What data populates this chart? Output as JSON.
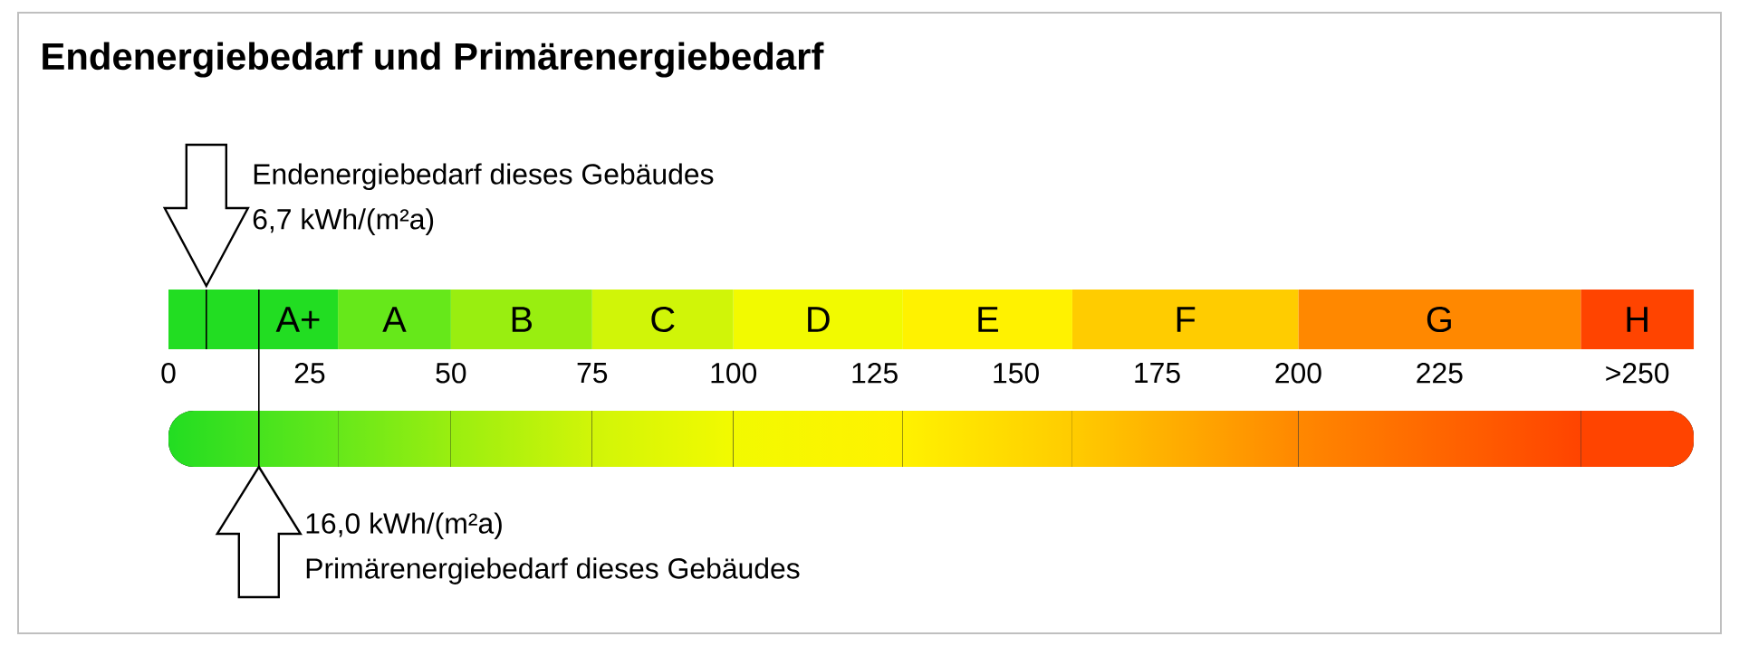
{
  "chart_data": {
    "type": "bar",
    "orientation": "horizontal",
    "stacked": true,
    "title": "Endenergiebedarf und Primärenergiebedarf",
    "categories": [
      null
    ],
    "xlim": [
      0,
      270
    ],
    "xticks": [
      0,
      25,
      50,
      75,
      100,
      125,
      150,
      175,
      200,
      225,
      {
        "value": 260,
        "label": ">250"
      }
    ],
    "series": [
      {
        "name": "A+",
        "color": "#22dd22",
        "values": [
          30
        ]
      },
      {
        "name": "A",
        "color": "#66e81a",
        "values": [
          20
        ]
      },
      {
        "name": "B",
        "color": "#99ee10",
        "values": [
          25
        ]
      },
      {
        "name": "C",
        "color": "#d0f508",
        "values": [
          25
        ]
      },
      {
        "name": "D",
        "color": "#f2fa00",
        "values": [
          30
        ]
      },
      {
        "name": "E",
        "color": "#fff200",
        "values": [
          30
        ]
      },
      {
        "name": "F",
        "color": "#ffcc00",
        "values": [
          40
        ]
      },
      {
        "name": "G",
        "color": "#ff8800",
        "values": [
          50
        ]
      },
      {
        "name": "H",
        "color": "#ff4400",
        "values": [
          20
        ]
      }
    ],
    "ref_lines": [
      {
        "axis": "x",
        "value": 6.7,
        "label": "6,7 kWh/(m²a)"
      },
      {
        "axis": "x",
        "value": 16.0,
        "label": "16,0 kWh/(m²a)"
      }
    ],
    "annotations": [
      "Endenergiebedarf dieses Gebäudes",
      "Primärenergiebedarf dieses Gebäudes"
    ]
  }
}
